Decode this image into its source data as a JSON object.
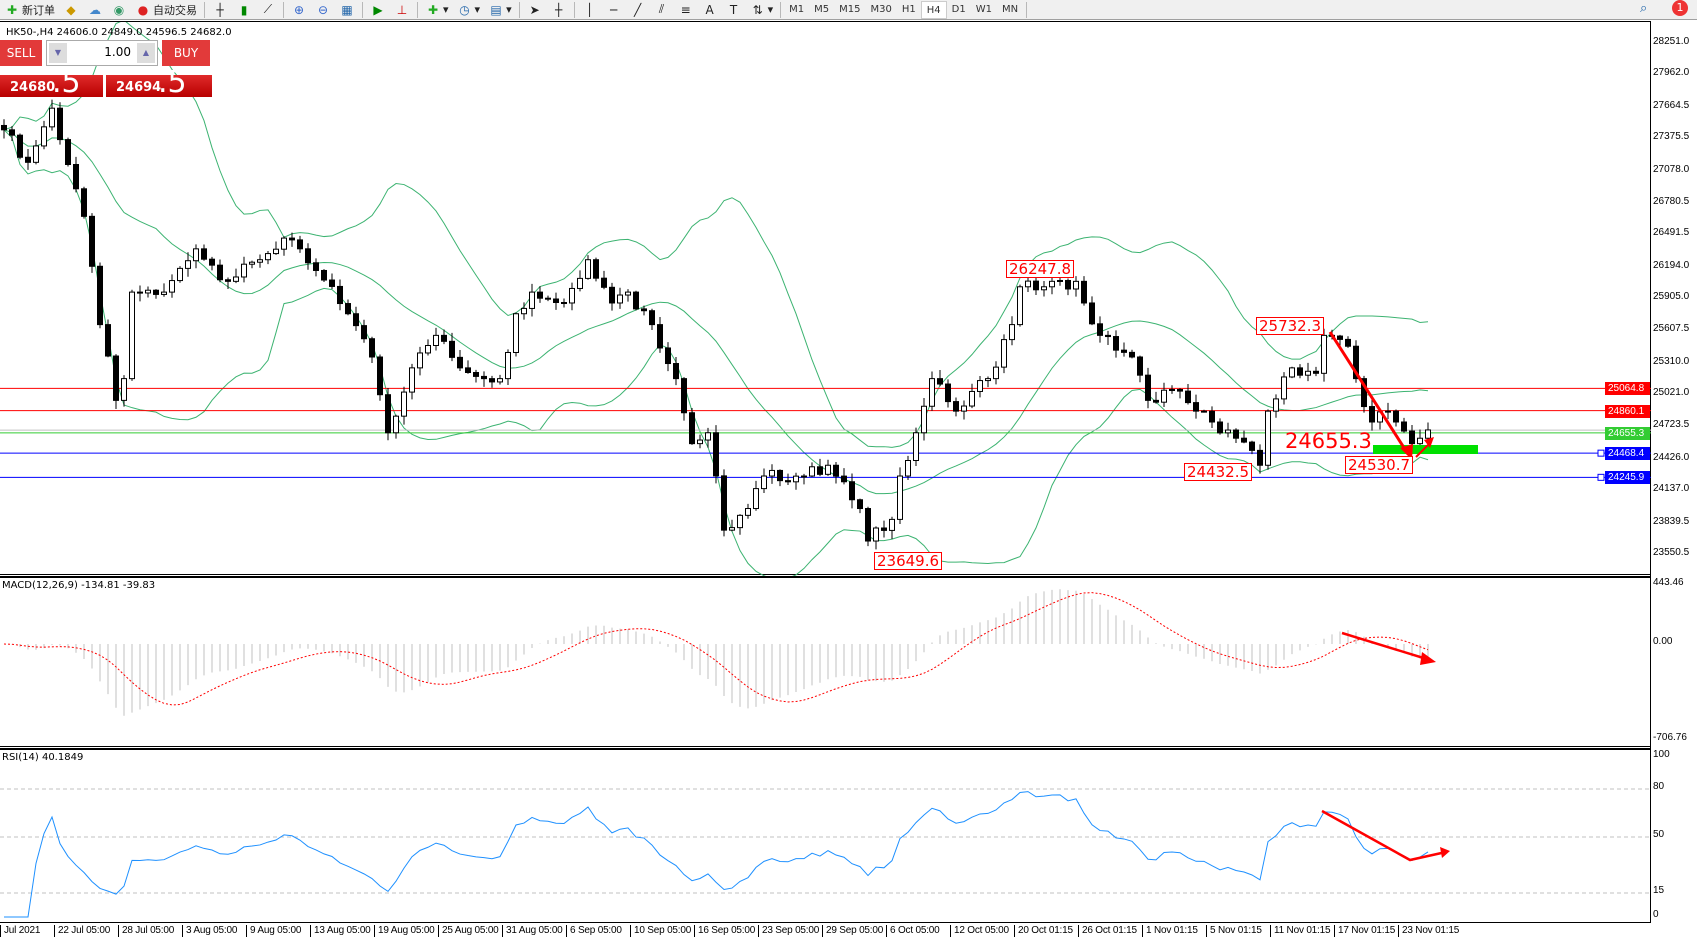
{
  "toolbar": {
    "new_order": "新订单",
    "auto_trading": "自动交易",
    "icons": [
      "new-order-icon",
      "market-watch-icon",
      "navigator-icon",
      "signals-icon",
      "auto-trading-icon",
      "bar-chart-icon",
      "candlestick-icon",
      "line-chart-icon",
      "zoom-in-icon",
      "zoom-out-icon",
      "tile-windows-icon",
      "auto-scroll-icon",
      "chart-shift-icon",
      "indicators-icon",
      "periods-icon",
      "templates-icon",
      "cursor-icon",
      "crosshair-icon",
      "vertical-line-icon",
      "horizontal-line-icon",
      "trendline-icon",
      "equidistant-channel-icon",
      "fibonacci-icon",
      "text-icon",
      "text-label-icon",
      "arrows-icon"
    ],
    "timeframes": [
      "M1",
      "M5",
      "M15",
      "M30",
      "H1",
      "H4",
      "D1",
      "W1",
      "MN"
    ],
    "active_timeframe": "H4"
  },
  "chart": {
    "header": "HK50-,H4  24606.0 24849.0 24596.5 24682.0",
    "trade_panel": {
      "sell": "SELL",
      "buy": "BUY",
      "lot": "1.00",
      "sell_big": "24680",
      "sell_small": ".5",
      "buy_big": "24694",
      "buy_small": ".5",
      "color": "#e02a2a"
    },
    "price_axis": [
      "28251.0",
      "27962.0",
      "27664.5",
      "27375.5",
      "27078.0",
      "26780.5",
      "26491.5",
      "26194.0",
      "25905.0",
      "25607.5",
      "25310.0",
      "25021.0",
      "24723.5",
      "24426.0",
      "24137.0",
      "23839.5",
      "23550.5"
    ],
    "levels": [
      {
        "price": 25064.8,
        "label": "25064.8",
        "color": "#ff0000"
      },
      {
        "price": 24860.1,
        "label": "24860.1",
        "color": "#ff0000"
      },
      {
        "price": 24655.3,
        "label": "24655.3",
        "color": "#33cc33"
      },
      {
        "price": 24468.4,
        "label": "24468.4",
        "color": "#0000ff"
      },
      {
        "price": 24245.9,
        "label": "24245.9",
        "color": "#0000ff"
      }
    ],
    "bid_line": 24680.5,
    "annotations": [
      "26247.8",
      "25732.3",
      "24432.5",
      "24655.3",
      "24530.7",
      "23649.6"
    ],
    "time_axis": [
      "Jul 2021",
      "22 Jul 05:00",
      "28 Jul 05:00",
      "3 Aug 05:00",
      "9 Aug 05:00",
      "13 Aug 05:00",
      "19 Aug 05:00",
      "25 Aug 05:00",
      "31 Aug 05:00",
      "6 Sep 05:00",
      "10 Sep 05:00",
      "16 Sep 05:00",
      "23 Sep 05:00",
      "29 Sep 05:00",
      "6 Oct 05:00",
      "12 Oct 05:00",
      "20 Oct 01:15",
      "26 Oct 01:15",
      "1 Nov 01:15",
      "5 Nov 01:15",
      "11 Nov 01:15",
      "17 Nov 01:15",
      "23 Nov 01:15"
    ],
    "macd": {
      "label": "MACD(12,26,9) -134.81 -39.83",
      "axis": [
        "443.46",
        "0.00",
        "-706.76"
      ]
    },
    "rsi": {
      "label": "RSI(14) 40.1849",
      "axis": [
        "100",
        "80",
        "50",
        "15",
        "0"
      ],
      "levels": [
        80,
        50,
        15
      ]
    },
    "notification_count": "1"
  },
  "chart_data": {
    "type": "candlestick",
    "symbol": "HK50-",
    "timeframe": "H4",
    "ylim": [
      23357,
      28251
    ],
    "close_waypoints": [
      [
        0,
        27443
      ],
      [
        3,
        27144
      ],
      [
        6,
        27642
      ],
      [
        10,
        26647
      ],
      [
        12,
        25651
      ],
      [
        14,
        24954
      ],
      [
        15,
        25154
      ],
      [
        16,
        25950
      ],
      [
        20,
        25950
      ],
      [
        24,
        26348
      ],
      [
        28,
        26049
      ],
      [
        32,
        26248
      ],
      [
        35,
        26447
      ],
      [
        39,
        26149
      ],
      [
        43,
        25751
      ],
      [
        46,
        25353
      ],
      [
        48,
        24656
      ],
      [
        51,
        25253
      ],
      [
        54,
        25552
      ],
      [
        57,
        25253
      ],
      [
        62,
        25154
      ],
      [
        64,
        25751
      ],
      [
        66,
        25950
      ],
      [
        70,
        25850
      ],
      [
        73,
        26248
      ],
      [
        76,
        25850
      ],
      [
        78,
        25950
      ],
      [
        81,
        25651
      ],
      [
        84,
        25154
      ],
      [
        86,
        24556
      ],
      [
        88,
        24656
      ],
      [
        90,
        23760
      ],
      [
        93,
        23959
      ],
      [
        95,
        24258
      ],
      [
        100,
        24258
      ],
      [
        103,
        24357
      ],
      [
        107,
        23959
      ],
      [
        108,
        23660
      ],
      [
        111,
        23859
      ],
      [
        112,
        24258
      ],
      [
        114,
        24656
      ],
      [
        116,
        25154
      ],
      [
        119,
        24855
      ],
      [
        123,
        25154
      ],
      [
        126,
        25651
      ],
      [
        127,
        25999
      ],
      [
        130,
        25999
      ],
      [
        134,
        26049
      ],
      [
        135,
        25850
      ],
      [
        137,
        25552
      ],
      [
        141,
        25353
      ],
      [
        143,
        24954
      ],
      [
        146,
        25054
      ],
      [
        149,
        24855
      ],
      [
        151,
        24755
      ],
      [
        154,
        24606
      ],
      [
        157,
        24357
      ],
      [
        158,
        24855
      ],
      [
        161,
        25253
      ],
      [
        164,
        25203
      ],
      [
        165,
        25552
      ],
      [
        168,
        25452
      ],
      [
        169,
        25154
      ],
      [
        171,
        24755
      ],
      [
        173,
        24855
      ],
      [
        176,
        24556
      ],
      [
        178,
        24682
      ]
    ]
  }
}
